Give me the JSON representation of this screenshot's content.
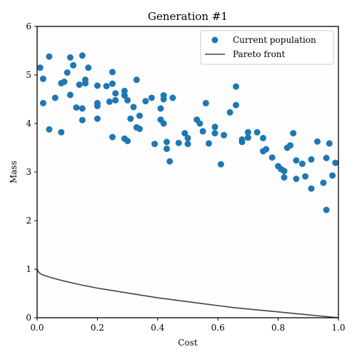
{
  "chart_data": {
    "type": "scatter",
    "title": "Generation #1",
    "xlabel": "Cost",
    "ylabel": "Mass",
    "xlim": [
      0,
      1
    ],
    "ylim": [
      0,
      6
    ],
    "xticks": [
      "0.0",
      "0.2",
      "0.4",
      "0.6",
      "0.8",
      "1.0"
    ],
    "yticks": [
      "0",
      "1",
      "2",
      "3",
      "4",
      "5",
      "6"
    ],
    "grid": false,
    "legend_position": "top-right",
    "series": [
      {
        "name": "Current population",
        "kind": "scatter",
        "color": "#1f77b4",
        "points": [
          [
            0.01,
            5.15
          ],
          [
            0.02,
            4.92
          ],
          [
            0.02,
            4.42
          ],
          [
            0.04,
            5.38
          ],
          [
            0.04,
            3.88
          ],
          [
            0.06,
            4.53
          ],
          [
            0.08,
            3.82
          ],
          [
            0.08,
            4.83
          ],
          [
            0.09,
            4.86
          ],
          [
            0.1,
            5.05
          ],
          [
            0.11,
            5.36
          ],
          [
            0.11,
            4.59
          ],
          [
            0.12,
            5.2
          ],
          [
            0.13,
            4.33
          ],
          [
            0.14,
            4.8
          ],
          [
            0.15,
            5.4
          ],
          [
            0.15,
            4.31
          ],
          [
            0.15,
            4.07
          ],
          [
            0.16,
            4.9
          ],
          [
            0.16,
            4.83
          ],
          [
            0.17,
            5.15
          ],
          [
            0.2,
            4.78
          ],
          [
            0.2,
            4.42
          ],
          [
            0.2,
            4.36
          ],
          [
            0.2,
            4.1
          ],
          [
            0.23,
            4.77
          ],
          [
            0.24,
            4.45
          ],
          [
            0.25,
            5.06
          ],
          [
            0.25,
            4.82
          ],
          [
            0.25,
            3.72
          ],
          [
            0.26,
            4.48
          ],
          [
            0.26,
            4.62
          ],
          [
            0.29,
            4.67
          ],
          [
            0.29,
            4.58
          ],
          [
            0.3,
            4.48
          ],
          [
            0.29,
            3.69
          ],
          [
            0.3,
            3.64
          ],
          [
            0.31,
            4.1
          ],
          [
            0.32,
            4.34
          ],
          [
            0.33,
            4.9
          ],
          [
            0.33,
            3.92
          ],
          [
            0.34,
            4.16
          ],
          [
            0.34,
            3.89
          ],
          [
            0.36,
            4.46
          ],
          [
            0.38,
            4.53
          ],
          [
            0.39,
            3.58
          ],
          [
            0.41,
            4.08
          ],
          [
            0.41,
            4.31
          ],
          [
            0.42,
            4.58
          ],
          [
            0.42,
            4.5
          ],
          [
            0.42,
            4.0
          ],
          [
            0.43,
            3.62
          ],
          [
            0.43,
            3.48
          ],
          [
            0.44,
            3.22
          ],
          [
            0.45,
            4.53
          ],
          [
            0.47,
            3.6
          ],
          [
            0.49,
            3.8
          ],
          [
            0.5,
            3.7
          ],
          [
            0.5,
            3.58
          ],
          [
            0.53,
            4.08
          ],
          [
            0.54,
            4.0
          ],
          [
            0.55,
            3.84
          ],
          [
            0.56,
            4.42
          ],
          [
            0.57,
            3.59
          ],
          [
            0.59,
            3.93
          ],
          [
            0.59,
            3.8
          ],
          [
            0.61,
            3.16
          ],
          [
            0.62,
            3.76
          ],
          [
            0.64,
            4.23
          ],
          [
            0.66,
            4.76
          ],
          [
            0.66,
            4.38
          ],
          [
            0.68,
            3.62
          ],
          [
            0.68,
            3.67
          ],
          [
            0.7,
            3.82
          ],
          [
            0.7,
            3.71
          ],
          [
            0.73,
            3.82
          ],
          [
            0.75,
            3.7
          ],
          [
            0.75,
            3.43
          ],
          [
            0.76,
            3.47
          ],
          [
            0.78,
            3.3
          ],
          [
            0.8,
            3.12
          ],
          [
            0.81,
            3.06
          ],
          [
            0.82,
            3.02
          ],
          [
            0.82,
            2.89
          ],
          [
            0.83,
            3.5
          ],
          [
            0.84,
            3.55
          ],
          [
            0.85,
            3.8
          ],
          [
            0.86,
            3.24
          ],
          [
            0.86,
            2.86
          ],
          [
            0.88,
            3.17
          ],
          [
            0.89,
            2.91
          ],
          [
            0.91,
            3.26
          ],
          [
            0.91,
            2.66
          ],
          [
            0.93,
            3.63
          ],
          [
            0.95,
            2.78
          ],
          [
            0.96,
            2.22
          ],
          [
            0.96,
            3.29
          ],
          [
            0.97,
            3.59
          ],
          [
            0.98,
            2.93
          ],
          [
            0.99,
            3.19
          ]
        ]
      },
      {
        "name": "Pareto front",
        "kind": "line",
        "color": "#444444",
        "points": [
          [
            0.0,
            1.0
          ],
          [
            0.005,
            0.94
          ],
          [
            0.01,
            0.91
          ],
          [
            0.02,
            0.88
          ],
          [
            0.03,
            0.86
          ],
          [
            0.05,
            0.82
          ],
          [
            0.08,
            0.77
          ],
          [
            0.1,
            0.74
          ],
          [
            0.15,
            0.67
          ],
          [
            0.2,
            0.61
          ],
          [
            0.25,
            0.56
          ],
          [
            0.3,
            0.51
          ],
          [
            0.35,
            0.46
          ],
          [
            0.4,
            0.41
          ],
          [
            0.45,
            0.37
          ],
          [
            0.5,
            0.33
          ],
          [
            0.55,
            0.29
          ],
          [
            0.6,
            0.25
          ],
          [
            0.65,
            0.21
          ],
          [
            0.7,
            0.18
          ],
          [
            0.75,
            0.15
          ],
          [
            0.8,
            0.12
          ],
          [
            0.85,
            0.09
          ],
          [
            0.9,
            0.06
          ],
          [
            0.95,
            0.03
          ],
          [
            1.0,
            0.0
          ]
        ]
      }
    ]
  }
}
